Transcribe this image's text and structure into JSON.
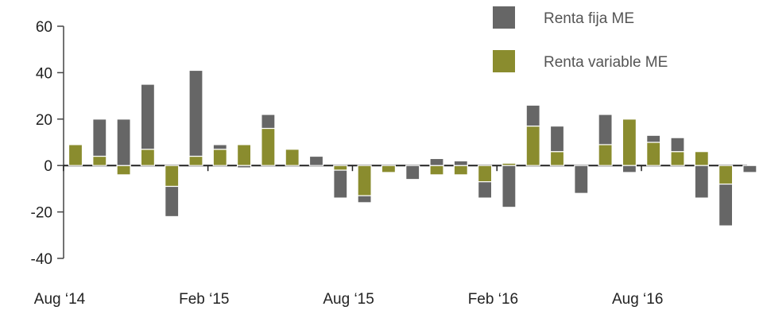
{
  "chart_data": {
    "type": "bar",
    "stacking": "stacked",
    "x_tick_labels": [
      "Aug ‘14",
      "Feb ‘15",
      "Aug ‘15",
      "Feb ‘16",
      "Aug ‘16"
    ],
    "categories": [
      "Aug 2014",
      "Sep 2014",
      "Oct 2014",
      "Nov 2014",
      "Dec 2014",
      "Jan 2015",
      "Feb 2015",
      "Mar 2015",
      "Apr 2015",
      "May 2015",
      "Jun 2015",
      "Jul 2015",
      "Aug 2015",
      "Sep 2015",
      "Oct 2015",
      "Nov 2015",
      "Dec 2015",
      "Jan 2016",
      "Feb 2016",
      "Mar 2016",
      "Apr 2016",
      "May 2016",
      "Jun 2016",
      "Jul 2016",
      "Aug 2016",
      "Sep 2016",
      "Oct 2016",
      "Nov 2016",
      "Dec 2016"
    ],
    "series": [
      {
        "name": "Renta variable ME",
        "color": "#8a8c2e",
        "values": [
          9,
          4,
          -4,
          7,
          -9,
          4,
          7,
          9,
          16,
          7,
          0,
          -2,
          -13,
          -3,
          0,
          -4,
          -4,
          -7,
          1,
          17,
          6,
          0,
          9,
          20,
          10,
          6,
          6,
          -8,
          0
        ]
      },
      {
        "name": "Renta fija ME",
        "color": "#666666",
        "values": [
          0,
          16,
          20,
          28,
          -13,
          37,
          2,
          -1,
          6,
          0,
          4,
          -12,
          -3,
          0,
          -6,
          3,
          2,
          -7,
          -18,
          9,
          11,
          -12,
          13,
          -3,
          3,
          6,
          -14,
          -18,
          -3
        ]
      }
    ],
    "ylim": [
      -40,
      60
    ],
    "yticks": [
      -40,
      -20,
      0,
      20,
      40,
      60
    ],
    "legend_position": "top-right",
    "grid": false
  }
}
